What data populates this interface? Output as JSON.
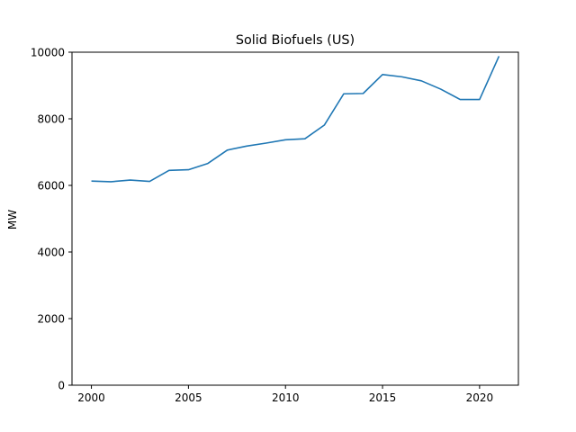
{
  "chart_data": {
    "type": "line",
    "title": "Solid Biofuels (US)",
    "xlabel": "",
    "ylabel": "MW",
    "xlim": [
      1999,
      2022
    ],
    "ylim": [
      0,
      10000
    ],
    "x_ticks": [
      2000,
      2005,
      2010,
      2015,
      2020
    ],
    "y_ticks": [
      0,
      2000,
      4000,
      6000,
      8000,
      10000
    ],
    "grid": false,
    "line_color": "#1f77b4",
    "series": [
      {
        "x": [
          2000,
          2001,
          2002,
          2003,
          2004,
          2005,
          2006,
          2007,
          2008,
          2009,
          2010,
          2011,
          2012,
          2013,
          2014,
          2015,
          2016,
          2017,
          2018,
          2019,
          2020,
          2021
        ],
        "values": [
          6130,
          6110,
          6160,
          6120,
          6450,
          6470,
          6660,
          7060,
          7180,
          7270,
          7370,
          7400,
          7810,
          8750,
          8760,
          9330,
          9260,
          9140,
          8890,
          8580,
          8580,
          9880
        ]
      }
    ]
  }
}
